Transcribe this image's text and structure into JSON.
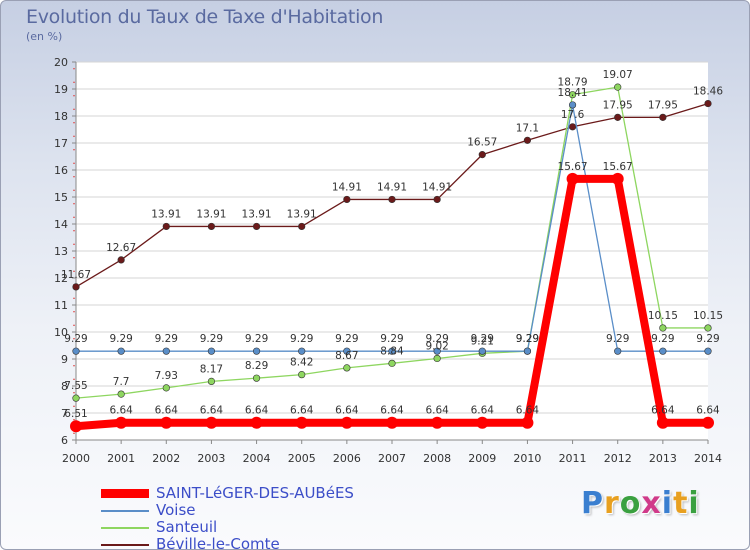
{
  "title": "Evolution du Taux de Taxe d'Habitation",
  "subtitle": "(en %)",
  "logo": {
    "text": "Proxiti",
    "letter_colors": [
      "#3a7fd0",
      "#e8a020",
      "#3aa040",
      "#d03a8a",
      "#3a7fd0",
      "#e8a020",
      "#3aa040"
    ]
  },
  "chart_data": {
    "type": "line",
    "x": [
      "2000",
      "2001",
      "2002",
      "2003",
      "2004",
      "2005",
      "2006",
      "2007",
      "2008",
      "2009",
      "2010",
      "2011",
      "2012",
      "2013",
      "2014"
    ],
    "ylim": [
      6,
      20
    ],
    "yticks": [
      "6",
      "7",
      "8",
      "9",
      "10",
      "11",
      "12",
      "13",
      "14",
      "15",
      "16",
      "17",
      "18",
      "19",
      "20"
    ],
    "grid": true,
    "legend_position": "bottom-left",
    "series": [
      {
        "name": "Béville-le-Comte",
        "color": "#6b1a1a",
        "values": [
          11.67,
          12.67,
          13.91,
          13.91,
          13.91,
          13.91,
          14.91,
          14.91,
          14.91,
          16.57,
          17.1,
          17.6,
          17.95,
          17.95,
          18.46
        ],
        "labels": [
          "11.67",
          "12.67",
          "13.91",
          "13.91",
          "13.91",
          "13.91",
          "14.91",
          "14.91",
          "14.91",
          "16.57",
          "17.1",
          "17.6",
          "17.95",
          "17.95",
          "18.46"
        ]
      },
      {
        "name": "Santeuil",
        "color": "#8ed660",
        "values": [
          7.55,
          7.7,
          7.93,
          8.17,
          8.29,
          8.42,
          8.67,
          8.84,
          9.02,
          9.21,
          9.29,
          18.79,
          19.07,
          10.15,
          10.15
        ],
        "labels": [
          "7.55",
          "7.7",
          "7.93",
          "8.17",
          "8.29",
          "8.42",
          "8.67",
          "8.84",
          "9.02",
          "9.21",
          "9.29",
          "18.79",
          "19.07",
          "10.15",
          "10.15"
        ]
      },
      {
        "name": "Voise",
        "color": "#5a8ec8",
        "values": [
          9.29,
          9.29,
          9.29,
          9.29,
          9.29,
          9.29,
          9.29,
          9.29,
          9.29,
          9.29,
          9.29,
          18.41,
          9.29,
          9.29,
          9.29
        ],
        "labels": [
          "9.29",
          "9.29",
          "9.29",
          "9.29",
          "9.29",
          "9.29",
          "9.29",
          "9.29",
          "9.29",
          "9.29",
          "9.29",
          "18.41",
          "9.29",
          "9.29",
          "9.29"
        ]
      },
      {
        "name": "SAINT-LéGER-DES-AUBéES",
        "color": "#ff0000",
        "values": [
          6.51,
          6.64,
          6.64,
          6.64,
          6.64,
          6.64,
          6.64,
          6.64,
          6.64,
          6.64,
          6.64,
          15.67,
          15.67,
          6.64,
          6.64
        ],
        "labels": [
          "6.51",
          "6.64",
          "6.64",
          "6.64",
          "6.64",
          "6.64",
          "6.64",
          "6.64",
          "6.64",
          "6.64",
          "6.64",
          "15.67",
          "15.67",
          "6.64",
          "6.64"
        ]
      }
    ],
    "legend": [
      "SAINT-LéGER-DES-AUBéES",
      "Voise",
      "Santeuil",
      "Béville-le-Comte"
    ]
  }
}
